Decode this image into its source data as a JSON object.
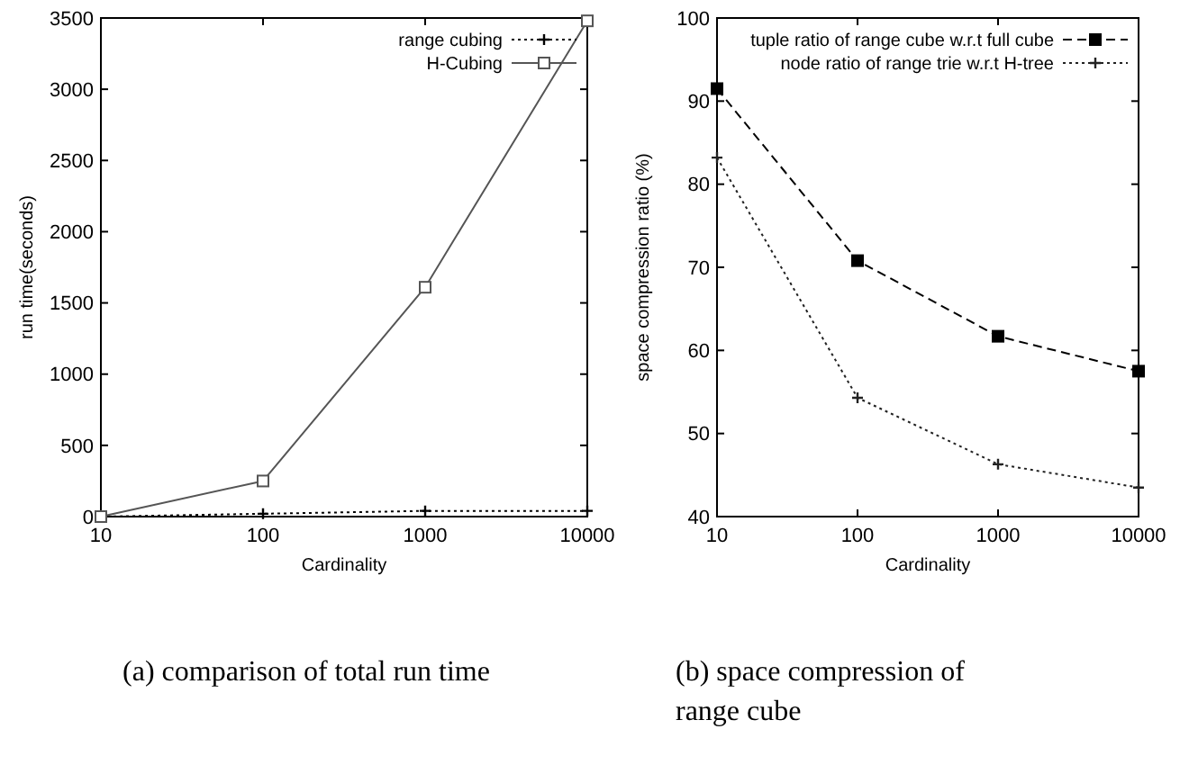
{
  "chart_data": [
    {
      "type": "line",
      "xlabel": "Cardinality",
      "ylabel": "run time(seconds)",
      "x": [
        10,
        100,
        1000,
        10000
      ],
      "log": "x",
      "xlim": [
        10,
        10000
      ],
      "xticks": [
        10,
        100,
        1000,
        10000
      ],
      "ylim": [
        0,
        3500
      ],
      "yticks": [
        0,
        500,
        1000,
        1500,
        2000,
        2500,
        3000,
        3500
      ],
      "grid": false,
      "legend": "top right",
      "annotations": [
        "(a) comparison of total run time"
      ],
      "series": [
        {
          "name": "range cubing",
          "color": "#000000",
          "values": [
            0,
            20,
            40,
            40
          ],
          "marker": "cross",
          "line_style": "dotted"
        },
        {
          "name": "H-Cubing",
          "color": "#555555",
          "values": [
            0,
            250,
            1610,
            3480
          ],
          "marker": "square",
          "line_style": "solid"
        }
      ]
    },
    {
      "type": "line",
      "xlabel": "Cardinality",
      "ylabel": "space compression ratio (%)",
      "x": [
        10,
        100,
        1000,
        10000
      ],
      "log": "x",
      "xlim": [
        10,
        10000
      ],
      "xticks": [
        10,
        100,
        1000,
        10000
      ],
      "ylim": [
        40,
        100
      ],
      "yticks": [
        40,
        50,
        60,
        70,
        80,
        90,
        100
      ],
      "grid": false,
      "legend": "top right",
      "annotations": [
        "(b) space compression of range cube"
      ],
      "series": [
        {
          "name": "tuple ratio of range cube w.r.t full cube",
          "color": "#000000",
          "values": [
            91.5,
            70.8,
            61.7,
            57.5
          ],
          "marker": "square",
          "line_style": "dashed"
        },
        {
          "name": "node ratio of range trie w.r.t H-tree",
          "color": "#222222",
          "values": [
            83.2,
            54.3,
            46.3,
            43.5
          ],
          "marker": "cross",
          "line_style": "dotted"
        }
      ]
    }
  ]
}
